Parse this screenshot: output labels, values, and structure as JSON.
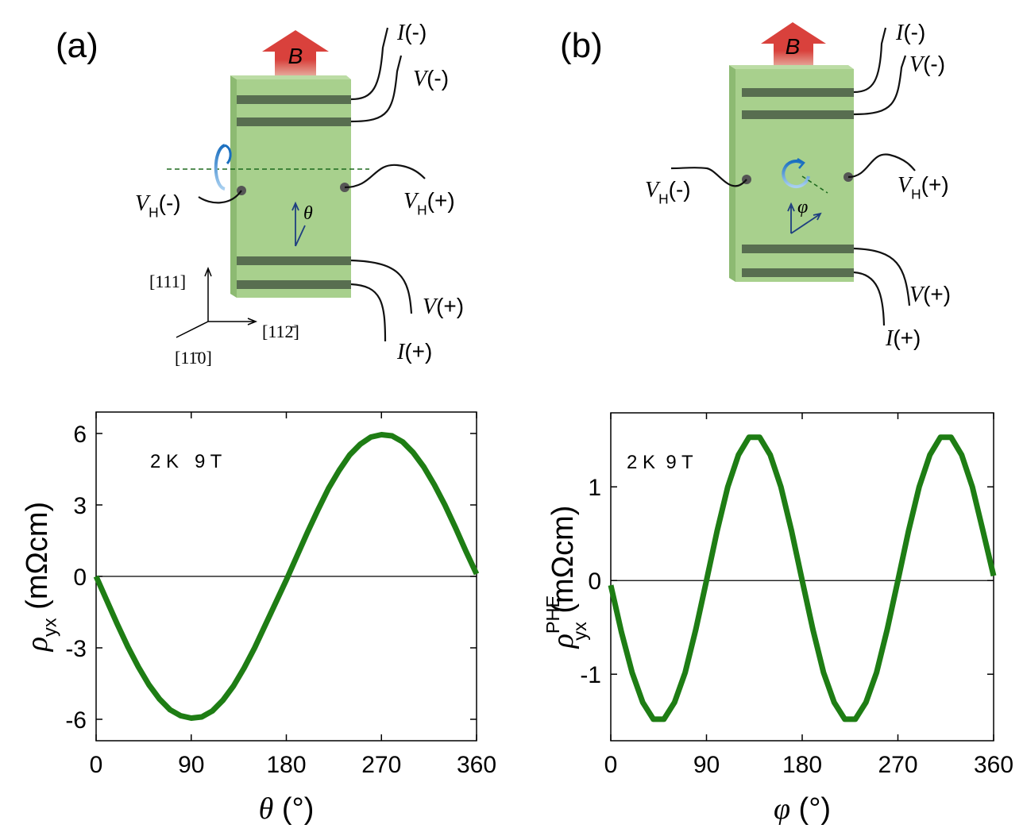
{
  "panels": [
    "(a)",
    "(b)"
  ],
  "diagrams": [
    {
      "field": "B",
      "labels": [
        {
          "symbol": "I",
          "suffix": "(-)"
        },
        {
          "symbol": "V",
          "suffix": "(-)"
        },
        {
          "symbol": "V",
          "sub": "H",
          "suffix": "(-)"
        },
        {
          "symbol": "V",
          "sub": "H",
          "suffix": "(+)"
        },
        {
          "symbol": "V",
          "suffix": "(+)"
        },
        {
          "symbol": "I",
          "suffix": "(+)"
        }
      ],
      "angle": "θ",
      "axes": [
        "[111]",
        "[112̄]",
        "[11̄0]"
      ]
    },
    {
      "field": "B",
      "labels": [
        {
          "symbol": "I",
          "suffix": "(-)"
        },
        {
          "symbol": "V",
          "suffix": "(-)"
        },
        {
          "symbol": "V",
          "sub": "H",
          "suffix": "(-)"
        },
        {
          "symbol": "V",
          "sub": "H",
          "suffix": "(+)"
        },
        {
          "symbol": "V",
          "suffix": "(+)"
        },
        {
          "symbol": "I",
          "suffix": "(+)"
        }
      ],
      "angle": "φ"
    }
  ],
  "chart_data": [
    {
      "type": "line",
      "annotation": "2 K   9 T",
      "color": "#1e7d14",
      "x_label": {
        "symbol": "θ",
        "suffix": " (°)"
      },
      "y_label": {
        "symbol": "ρ",
        "sub": "yx",
        "suffix": " (mΩcm)"
      },
      "xlim": [
        0,
        360
      ],
      "xticks": [
        0,
        90,
        180,
        270,
        360
      ],
      "ylim": [
        -6.9,
        6.9
      ],
      "yticks": [
        -6,
        -3,
        0,
        3,
        6
      ],
      "x": [
        0,
        10,
        20,
        30,
        40,
        50,
        60,
        70,
        80,
        90,
        100,
        110,
        120,
        130,
        140,
        150,
        160,
        170,
        180,
        190,
        200,
        210,
        220,
        230,
        240,
        250,
        260,
        270,
        280,
        290,
        300,
        310,
        320,
        330,
        340,
        350,
        360
      ],
      "values": [
        0,
        -1.0,
        -2.0,
        -2.95,
        -3.8,
        -4.55,
        -5.15,
        -5.6,
        -5.85,
        -5.95,
        -5.9,
        -5.65,
        -5.2,
        -4.6,
        -3.85,
        -3.0,
        -2.05,
        -1.1,
        -0.15,
        0.85,
        1.85,
        2.8,
        3.7,
        4.45,
        5.1,
        5.55,
        5.85,
        5.95,
        5.9,
        5.65,
        5.2,
        4.6,
        3.85,
        3.0,
        2.05,
        1.05,
        0.1
      ]
    },
    {
      "type": "line",
      "annotation": "2 K  9 T",
      "color": "#1e7d14",
      "x_label": {
        "symbol": "φ",
        "suffix": " (°)"
      },
      "y_label": {
        "symbol": "ρ",
        "sup": "PHE",
        "sub": "yx",
        "suffix": " (mΩcm)"
      },
      "xlim": [
        0,
        360
      ],
      "xticks": [
        0,
        90,
        180,
        270,
        360
      ],
      "ylim": [
        -1.71,
        1.79
      ],
      "yticks": [
        -1,
        0,
        1
      ],
      "x": [
        0,
        10,
        20,
        30,
        40,
        50,
        60,
        70,
        80,
        90,
        100,
        110,
        120,
        130,
        140,
        150,
        160,
        170,
        180,
        190,
        200,
        210,
        220,
        230,
        240,
        250,
        260,
        270,
        280,
        290,
        300,
        310,
        320,
        330,
        340,
        350,
        360
      ],
      "values": [
        -0.05,
        -0.55,
        -0.98,
        -1.3,
        -1.48,
        -1.48,
        -1.3,
        -0.98,
        -0.52,
        0,
        0.53,
        1.0,
        1.34,
        1.53,
        1.53,
        1.34,
        1.0,
        0.53,
        0,
        -0.52,
        -0.98,
        -1.3,
        -1.48,
        -1.48,
        -1.3,
        -0.98,
        -0.52,
        0,
        0.53,
        1.0,
        1.34,
        1.53,
        1.53,
        1.34,
        1.0,
        0.53,
        0.05
      ]
    }
  ]
}
